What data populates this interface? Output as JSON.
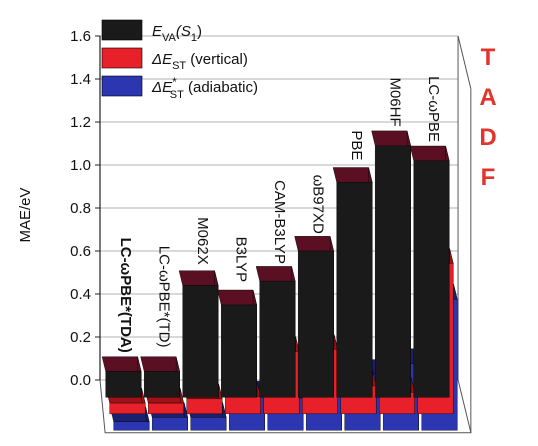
{
  "chart_data": {
    "type": "bar",
    "title": "",
    "xlabel": "",
    "ylabel": "MAE/eV",
    "ylim": [
      0,
      1.6
    ],
    "yticks": [
      "0.0",
      "0.2",
      "0.4",
      "0.6",
      "0.8",
      "1.0",
      "1.2",
      "1.4",
      "1.6"
    ],
    "categories": [
      "LC-ωPBE*(TDA)",
      "LC-ωPBE*(TD)",
      "M062X",
      "B3LYP",
      "CAM-B3LYP",
      "ωB97XD",
      "PBE",
      "M06HF",
      "LC-ωPBE"
    ],
    "category_bold": [
      true,
      false,
      false,
      false,
      false,
      false,
      false,
      false,
      false
    ],
    "series": [
      {
        "name": "E_VA(S_1)",
        "color": "#1a1a1a",
        "side_color": "#5a1022",
        "values": [
          0.12,
          0.12,
          0.52,
          0.43,
          0.54,
          0.68,
          1.0,
          1.17,
          1.1
        ]
      },
      {
        "name": "ΔE_ST (vertical)",
        "color": "#e8202a",
        "side_color": "#a01218",
        "values": [
          0.05,
          0.05,
          0.07,
          0.08,
          0.29,
          0.3,
          0.13,
          0.1,
          0.7
        ]
      },
      {
        "name": "ΔE*_ST (adiabatic)",
        "color": "#2c36b0",
        "side_color": "#1a2070",
        "values": [
          0.04,
          0.06,
          0.06,
          0.16,
          0.15,
          0.17,
          0.26,
          0.31,
          0.61
        ]
      }
    ],
    "legend": {
      "placement": "top-left",
      "entries": [
        {
          "main": "E",
          "sub": "VA",
          "paren": "(S",
          "paren_sub": "1",
          "close": ")"
        },
        {
          "main": "ΔE",
          "sub": "ST",
          "suffix": " (vertical)"
        },
        {
          "main": "ΔE",
          "sub": "ST",
          "sup": "*",
          "suffix": " (adiabatic)"
        }
      ]
    },
    "annotation": [
      "T",
      "A",
      "D",
      "F"
    ],
    "annotation_color": "#e0342d",
    "grid": true
  }
}
